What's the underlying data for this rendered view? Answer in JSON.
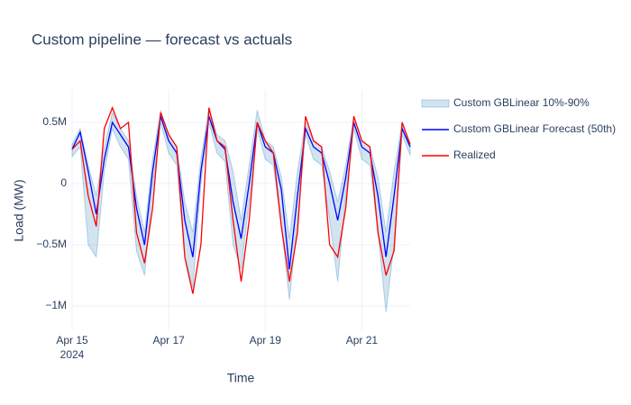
{
  "chart_data": {
    "type": "line",
    "title": "Custom pipeline — forecast vs actuals",
    "x_label": "Time",
    "y_label": "Load (MW)",
    "x": [
      "2024-04-15T00:00",
      "2024-04-15T04:00",
      "2024-04-15T08:00",
      "2024-04-15T12:00",
      "2024-04-15T16:00",
      "2024-04-15T20:00",
      "2024-04-16T00:00",
      "2024-04-16T04:00",
      "2024-04-16T08:00",
      "2024-04-16T12:00",
      "2024-04-16T16:00",
      "2024-04-16T20:00",
      "2024-04-17T00:00",
      "2024-04-17T04:00",
      "2024-04-17T08:00",
      "2024-04-17T12:00",
      "2024-04-17T16:00",
      "2024-04-17T20:00",
      "2024-04-18T00:00",
      "2024-04-18T04:00",
      "2024-04-18T08:00",
      "2024-04-18T12:00",
      "2024-04-18T16:00",
      "2024-04-18T20:00",
      "2024-04-19T00:00",
      "2024-04-19T04:00",
      "2024-04-19T08:00",
      "2024-04-19T12:00",
      "2024-04-19T16:00",
      "2024-04-19T20:00",
      "2024-04-20T00:00",
      "2024-04-20T04:00",
      "2024-04-20T08:00",
      "2024-04-20T12:00",
      "2024-04-20T16:00",
      "2024-04-20T20:00",
      "2024-04-21T00:00",
      "2024-04-21T04:00",
      "2024-04-21T08:00",
      "2024-04-21T12:00",
      "2024-04-21T16:00",
      "2024-04-21T20:00",
      "2024-04-22T00:00"
    ],
    "band": {
      "name": "Custom GBLinear 10%-90%",
      "color": "#1f77b4",
      "lower": [
        220000,
        300000,
        -500000,
        -600000,
        100000,
        450000,
        300000,
        200000,
        -550000,
        -750000,
        -50000,
        500000,
        250000,
        150000,
        -600000,
        -850000,
        0,
        500000,
        250000,
        180000,
        -500000,
        -700000,
        -150000,
        450000,
        200000,
        150000,
        -350000,
        -950000,
        -300000,
        400000,
        200000,
        150000,
        -300000,
        -800000,
        -100000,
        450000,
        200000,
        150000,
        -400000,
        -1050000,
        -500000,
        400000,
        230000
      ],
      "upper": [
        320000,
        450000,
        150000,
        -100000,
        300000,
        580000,
        450000,
        350000,
        -100000,
        -400000,
        200000,
        600000,
        400000,
        300000,
        -150000,
        -400000,
        200000,
        620000,
        400000,
        350000,
        100000,
        -300000,
        150000,
        600000,
        350000,
        300000,
        50000,
        -450000,
        100000,
        500000,
        350000,
        300000,
        100000,
        -150000,
        150000,
        550000,
        350000,
        300000,
        50000,
        -400000,
        100000,
        500000,
        330000
      ]
    },
    "series": [
      {
        "name": "Custom GBLinear Forecast (50th)",
        "color": "#0000ff",
        "values": [
          280000,
          420000,
          100000,
          -250000,
          200000,
          500000,
          400000,
          300000,
          -200000,
          -500000,
          100000,
          550000,
          350000,
          250000,
          -300000,
          -600000,
          100000,
          550000,
          350000,
          280000,
          -150000,
          -450000,
          0,
          500000,
          300000,
          250000,
          -50000,
          -700000,
          -100000,
          450000,
          300000,
          250000,
          0,
          -300000,
          50000,
          500000,
          300000,
          250000,
          -100000,
          -600000,
          -100000,
          450000,
          300000
        ]
      },
      {
        "name": "Realized",
        "color": "#ff0000",
        "values": [
          280000,
          350000,
          -100000,
          -350000,
          450000,
          620000,
          450000,
          500000,
          -400000,
          -650000,
          -200000,
          580000,
          400000,
          300000,
          -600000,
          -900000,
          -500000,
          620000,
          350000,
          300000,
          -300000,
          -800000,
          -300000,
          500000,
          350000,
          250000,
          -350000,
          -800000,
          -400000,
          550000,
          350000,
          300000,
          -500000,
          -600000,
          -200000,
          550000,
          350000,
          300000,
          -400000,
          -750000,
          -550000,
          500000,
          320000
        ]
      }
    ],
    "xlim": [
      "2024-04-15T00:00",
      "2024-04-22T00:00"
    ],
    "xticks": [
      {
        "value": "2024-04-15T00:00",
        "label": "Apr 15"
      },
      {
        "value": "2024-04-17T00:00",
        "label": "Apr 17"
      },
      {
        "value": "2024-04-19T00:00",
        "label": "Apr 19"
      },
      {
        "value": "2024-04-21T00:00",
        "label": "Apr 21"
      }
    ],
    "xtick_year": "2024",
    "ylim": [
      -1206000,
      765000
    ],
    "yticks": [
      {
        "value": -1000000,
        "label": "−1M"
      },
      {
        "value": -500000,
        "label": "−0.5M"
      },
      0,
      {
        "value": 500000,
        "label": "0.5M"
      }
    ],
    "grid": true,
    "legend": "right"
  }
}
